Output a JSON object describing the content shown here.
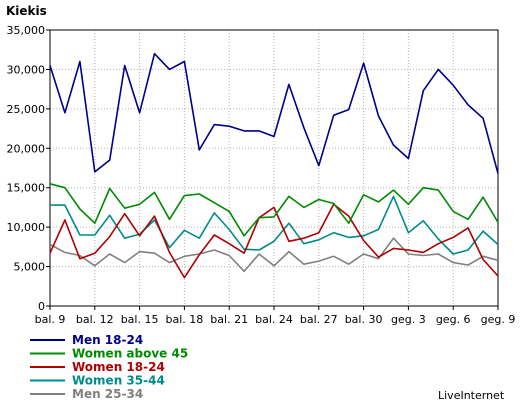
{
  "chart_data": {
    "type": "line",
    "title": "",
    "xlabel": "",
    "ylabel": "Kiekis",
    "ylim": [
      0,
      35000
    ],
    "yticks": [
      "0",
      "5,000",
      "10,000",
      "15,000",
      "20,000",
      "25,000",
      "30,000",
      "35,000"
    ],
    "xtick_labels": [
      "bal. 9",
      "bal. 12",
      "bal. 15",
      "bal. 18",
      "bal. 21",
      "bal. 24",
      "bal. 27",
      "bal. 30",
      "geg. 3",
      "geg. 6",
      "geg. 9"
    ],
    "x": [
      "bal. 9",
      "bal. 10",
      "bal. 11",
      "bal. 12",
      "bal. 13",
      "bal. 14",
      "bal. 15",
      "bal. 16",
      "bal. 17",
      "bal. 18",
      "bal. 19",
      "bal. 20",
      "bal. 21",
      "bal. 22",
      "bal. 23",
      "bal. 24",
      "bal. 25",
      "bal. 26",
      "bal. 27",
      "bal. 28",
      "bal. 29",
      "bal. 30",
      "geg. 1",
      "geg. 2",
      "geg. 3",
      "geg. 4",
      "geg. 5",
      "geg. 6",
      "geg. 7",
      "geg. 8",
      "geg. 9"
    ],
    "grid": true,
    "legend_position": "bottom-left",
    "series": [
      {
        "name": "Men 18-24",
        "color": "#00008b",
        "values": [
          30500,
          24500,
          31000,
          17000,
          18500,
          30500,
          24500,
          32000,
          30000,
          31000,
          19800,
          23000,
          22800,
          22200,
          22200,
          21500,
          28100,
          22600,
          17800,
          24200,
          24900,
          30800,
          24100,
          20400,
          18700,
          27300,
          30000,
          28000,
          25500,
          23800,
          16800
        ]
      },
      {
        "name": "Women above 45",
        "color": "#008b00",
        "values": [
          15500,
          15000,
          12300,
          10500,
          14900,
          12400,
          12900,
          14400,
          11000,
          14000,
          14200,
          13100,
          12000,
          8900,
          11200,
          11300,
          13900,
          12500,
          13500,
          13000,
          10500,
          14100,
          13200,
          14700,
          12900,
          15000,
          14700,
          12000,
          11000,
          13800,
          10600
        ]
      },
      {
        "name": "Women 18-24",
        "color": "#b00000",
        "values": [
          6700,
          10900,
          6000,
          6700,
          8800,
          11700,
          8900,
          11400,
          6800,
          3600,
          6500,
          9000,
          7900,
          6700,
          11200,
          12500,
          8200,
          8600,
          9300,
          12900,
          11400,
          8300,
          6200,
          7300,
          7100,
          6800,
          7900,
          8700,
          9900,
          5900,
          3800
        ]
      },
      {
        "name": "Women 35-44",
        "color": "#008b8b",
        "values": [
          12800,
          12800,
          9000,
          9000,
          11500,
          8600,
          9100,
          10900,
          7400,
          9600,
          8600,
          11800,
          9700,
          7200,
          7100,
          8200,
          10500,
          7900,
          8400,
          9300,
          8700,
          8900,
          9700,
          13900,
          9300,
          10800,
          8500,
          6600,
          7100,
          9500,
          7800
        ]
      },
      {
        "name": "Men 25-34",
        "color": "#808080",
        "values": [
          7800,
          6800,
          6400,
          5100,
          6600,
          5500,
          6900,
          6700,
          5500,
          6300,
          6600,
          7100,
          6400,
          4400,
          6600,
          5100,
          6900,
          5300,
          5700,
          6300,
          5300,
          6600,
          6000,
          8600,
          6600,
          6400,
          6600,
          5500,
          5200,
          6300,
          5800
        ]
      }
    ]
  },
  "legend": [
    {
      "label": "Men 18-24",
      "color": "#00008b"
    },
    {
      "label": "Women above 45",
      "color": "#008b00"
    },
    {
      "label": "Women 18-24",
      "color": "#b00000"
    },
    {
      "label": "Women 35-44",
      "color": "#008b8b"
    },
    {
      "label": "Men 25-34",
      "color": "#808080"
    }
  ],
  "brand": "LiveInternet"
}
